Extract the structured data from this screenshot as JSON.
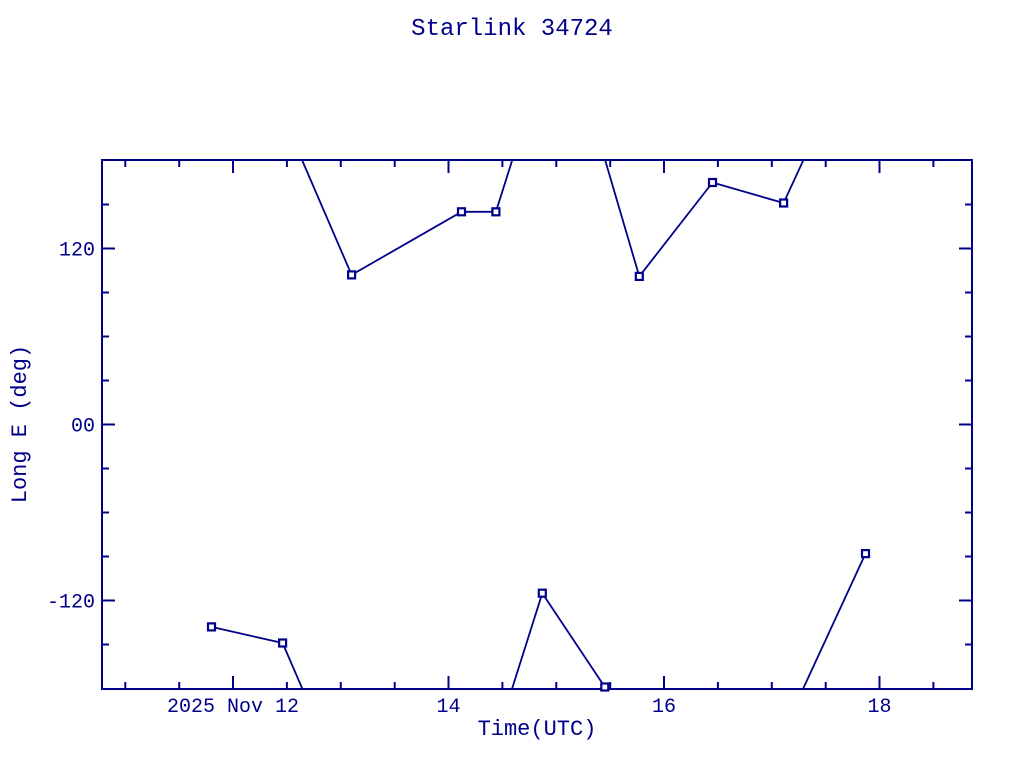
{
  "colors": {
    "accent": "#00008b",
    "background": "#ffffff"
  },
  "chart_data": {
    "type": "line",
    "title": "Starlink 34724",
    "xlabel": "Time(UTC)",
    "ylabel": "Long E (deg)",
    "x_axis_note": "hours UTC, wraps at +/-180 deg longitude",
    "xlim": [
      10.784,
      18.858
    ],
    "ylim": [
      -180.35,
      180.35
    ],
    "x_major_ticks": [
      {
        "value": 12,
        "label": "2025 Nov 12"
      },
      {
        "value": 14,
        "label": "14"
      },
      {
        "value": 16,
        "label": "16"
      },
      {
        "value": 18,
        "label": "18"
      }
    ],
    "x_minor_ticks": {
      "start": 11,
      "step": 0.5,
      "end": 18.5
    },
    "y_major_ticks": [
      {
        "value": 120,
        "label": "120"
      },
      {
        "value": 0,
        "label": "00"
      },
      {
        "value": -120,
        "label": "-120"
      }
    ],
    "y_minor_ticks": {
      "start": -150,
      "step": 30,
      "end": 150
    },
    "grid": false,
    "legend": false,
    "series": [
      {
        "name": "Long E",
        "color": "#00008b",
        "marker": "open-square",
        "points": [
          [
            11.8,
            -138
          ],
          [
            12.46,
            -149
          ],
          [
            13.1,
            102
          ],
          [
            14.12,
            145
          ],
          [
            14.44,
            145
          ],
          [
            14.87,
            -115
          ],
          [
            15.45,
            -179
          ],
          [
            15.77,
            101
          ],
          [
            16.45,
            165
          ],
          [
            17.11,
            151
          ],
          [
            17.87,
            -88
          ]
        ]
      }
    ]
  }
}
